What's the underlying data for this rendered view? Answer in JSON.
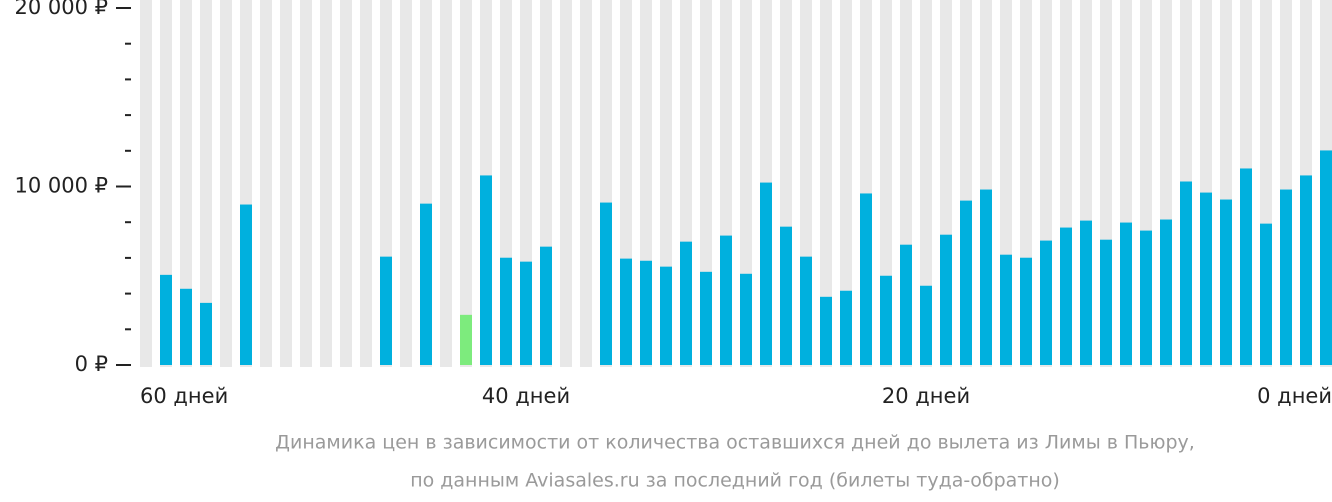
{
  "chart_data": {
    "type": "bar",
    "caption": [
      "Динамика цен в зависимости от количества оставшихся дней до вылета из Лимы в Пьюру,",
      "по данным Aviasales.ru за последний год (билеты туда-обратно)"
    ],
    "x": [
      59,
      58,
      57,
      56,
      55,
      54,
      53,
      52,
      51,
      50,
      49,
      48,
      47,
      46,
      45,
      44,
      43,
      42,
      41,
      40,
      39,
      38,
      37,
      36,
      35,
      34,
      33,
      32,
      31,
      30,
      29,
      28,
      27,
      26,
      25,
      24,
      23,
      22,
      21,
      20,
      19,
      18,
      17,
      16,
      15,
      14,
      13,
      12,
      11,
      10,
      9,
      8,
      7,
      6,
      5,
      4,
      3,
      2,
      1,
      0
    ],
    "values": [
      null,
      5050,
      4270,
      3480,
      null,
      8990,
      null,
      null,
      null,
      null,
      null,
      null,
      6070,
      null,
      9040,
      null,
      2810,
      10620,
      6010,
      5790,
      6630,
      null,
      null,
      9100,
      5960,
      5840,
      5510,
      6910,
      5220,
      7250,
      5110,
      10220,
      7750,
      6070,
      3820,
      4160,
      9610,
      5000,
      6740,
      4440,
      7300,
      9210,
      9830,
      6180,
      6010,
      6970,
      7700,
      8090,
      7020,
      7980,
      7530,
      8150,
      10280,
      9660,
      9270,
      11010,
      7920,
      9830,
      10620,
      12020
    ],
    "color": "#00b0de",
    "colors": {
      "16": "#7deb7d"
    },
    "background_bar_color": "#e8e8e8",
    "xlim": [
      60,
      0
    ],
    "xticks": [
      {
        "value": 60,
        "label": "60 дней"
      },
      {
        "value": 40,
        "label": "40 дней"
      },
      {
        "value": 20,
        "label": "20 дней"
      },
      {
        "value": 0,
        "label": "0 дней"
      }
    ],
    "ylim": [
      0,
      20000
    ],
    "yticks": [
      {
        "value": 0,
        "label": "0 ₽"
      },
      {
        "value": 10000,
        "label": "10 000 ₽"
      },
      {
        "value": 20000,
        "label": "20 000 ₽"
      }
    ],
    "yminor_ticks": [
      2000,
      4000,
      6000,
      8000,
      12000,
      14000,
      16000,
      18000
    ]
  }
}
